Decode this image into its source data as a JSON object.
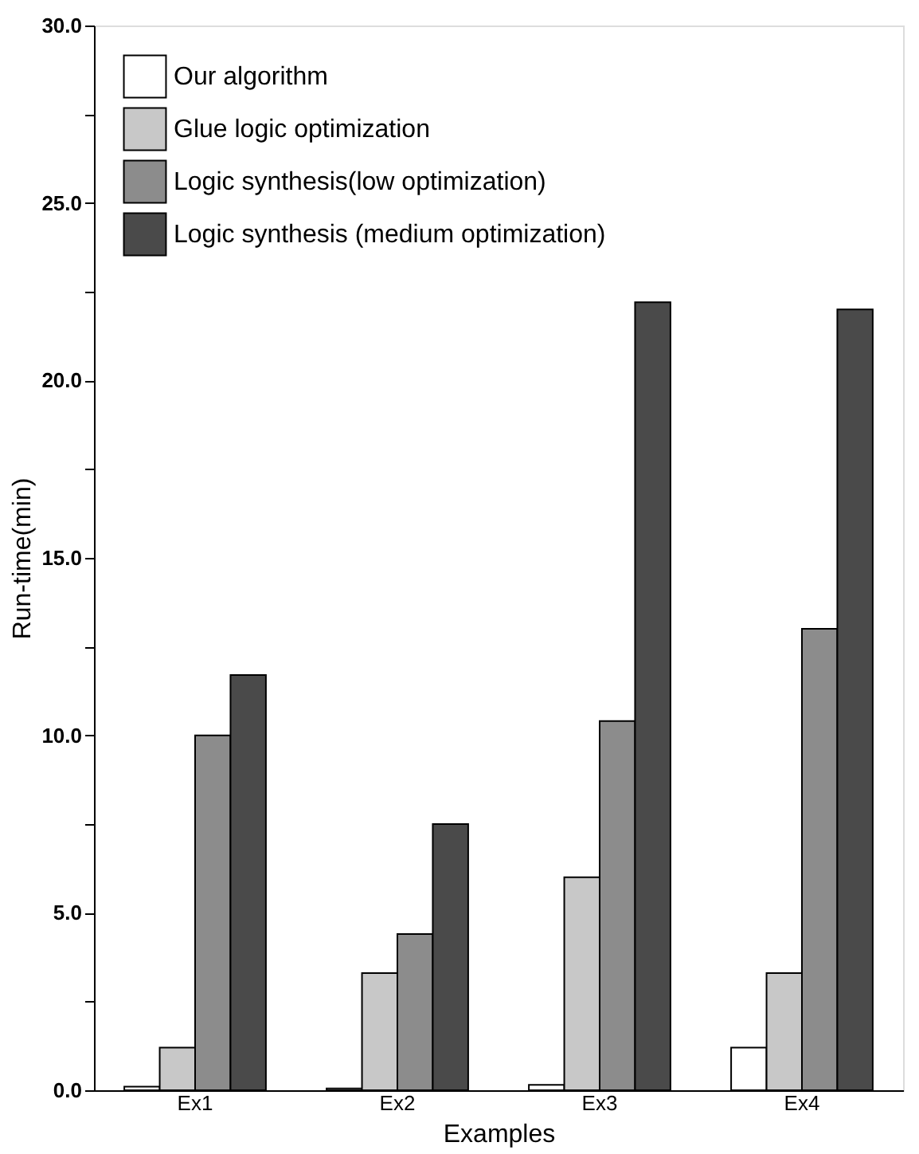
{
  "chart_data": {
    "type": "bar",
    "xlabel": "Examples",
    "ylabel": "Run-time(min)",
    "categories": [
      "Ex1",
      "Ex2",
      "Ex3",
      "Ex4"
    ],
    "series": [
      {
        "name": "Our algorithm",
        "color": "#ffffff",
        "values": [
          0.1,
          0.05,
          0.15,
          1.2
        ]
      },
      {
        "name": "Glue logic optimization",
        "color": "#c8c8c8",
        "values": [
          1.2,
          3.3,
          6.0,
          3.3
        ]
      },
      {
        "name": "Logic synthesis(low optimization)",
        "color": "#8c8c8c",
        "values": [
          10.0,
          4.4,
          10.4,
          13.0
        ]
      },
      {
        "name": "Logic synthesis (medium optimization)",
        "color": "#4a4a4a",
        "values": [
          11.7,
          7.5,
          22.2,
          22.0
        ]
      }
    ],
    "ylim": [
      0,
      30
    ],
    "yticks": [
      {
        "value": 0,
        "label": "0.0"
      },
      {
        "value": 2.5,
        "label": null
      },
      {
        "value": 5,
        "label": "5.0"
      },
      {
        "value": 7.5,
        "label": null
      },
      {
        "value": 10,
        "label": "10.0"
      },
      {
        "value": 12.5,
        "label": null
      },
      {
        "value": 15,
        "label": "15.0"
      },
      {
        "value": 17.5,
        "label": null
      },
      {
        "value": 20,
        "label": "20.0"
      },
      {
        "value": 22.5,
        "label": null
      },
      {
        "value": 25,
        "label": "25.0"
      },
      {
        "value": 27.5,
        "label": null
      },
      {
        "value": 30,
        "label": "30.0"
      }
    ],
    "grid": false,
    "legend": "top left"
  }
}
